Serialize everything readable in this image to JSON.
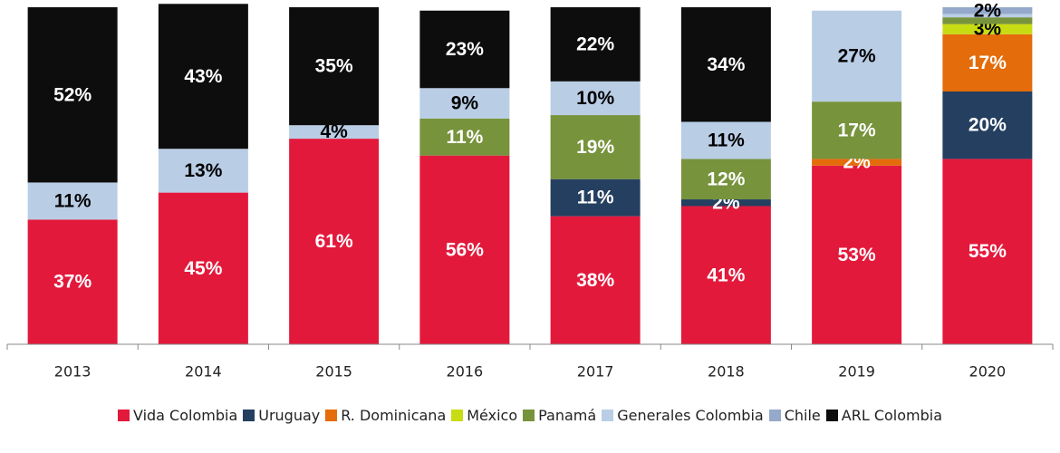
{
  "chart_data": {
    "type": "stacked_bar",
    "categories": [
      "2013",
      "2014",
      "2015",
      "2016",
      "2017",
      "2018",
      "2019",
      "2020"
    ],
    "ylim": [
      0,
      100
    ],
    "series": [
      {
        "name": "Vida Colombia",
        "color": "#e3193c",
        "label_color": "#ffffff",
        "values": [
          37,
          45,
          61,
          56,
          38,
          41,
          53,
          55
        ],
        "value_labels": [
          "37%",
          "45%",
          "61%",
          "56%",
          "38%",
          "41%",
          "53%",
          "55%"
        ]
      },
      {
        "name": "Uruguay",
        "color": "#243f60",
        "label_color": "#ffffff",
        "values": [
          null,
          null,
          null,
          null,
          11,
          2,
          null,
          20
        ],
        "value_labels": [
          null,
          null,
          null,
          null,
          "11%",
          "2%",
          null,
          "20%"
        ]
      },
      {
        "name": "R. Dominicana",
        "color": "#e46c0a",
        "label_color": "#ffffff",
        "values": [
          null,
          null,
          null,
          null,
          null,
          null,
          2,
          17
        ],
        "value_labels": [
          null,
          null,
          null,
          null,
          null,
          null,
          "2%",
          "17%"
        ]
      },
      {
        "name": "México",
        "color": "#c8dc14",
        "label_color": "#000000",
        "values": [
          null,
          null,
          null,
          null,
          null,
          null,
          null,
          3
        ],
        "value_labels": [
          null,
          null,
          null,
          null,
          null,
          null,
          null,
          "3%"
        ]
      },
      {
        "name": "Panamá",
        "color": "#77933c",
        "label_color": "#ffffff",
        "values": [
          null,
          null,
          null,
          11,
          19,
          12,
          17,
          2
        ],
        "value_labels": [
          null,
          null,
          null,
          "11%",
          "19%",
          "12%",
          "17%",
          null
        ]
      },
      {
        "name": "Generales Colombia",
        "color": "#b9cde5",
        "label_color": "#000000",
        "values": [
          11,
          13,
          4,
          9,
          10,
          11,
          27,
          1
        ],
        "value_labels": [
          "11%",
          "13%",
          "4%",
          "9%",
          "10%",
          "11%",
          "27%",
          null
        ]
      },
      {
        "name": "Chile",
        "color": "#95a9cb",
        "label_color": "#000000",
        "values": [
          null,
          null,
          null,
          null,
          null,
          null,
          null,
          2
        ],
        "value_labels": [
          null,
          null,
          null,
          null,
          null,
          null,
          null,
          "2%"
        ]
      },
      {
        "name": "ARL Colombia",
        "color": "#0d0d0d",
        "label_color": "#ffffff",
        "values": [
          52,
          43,
          35,
          23,
          22,
          34,
          null,
          null
        ],
        "value_labels": [
          "52%",
          "43%",
          "35%",
          "23%",
          "22%",
          "34%",
          null,
          null
        ]
      }
    ]
  }
}
